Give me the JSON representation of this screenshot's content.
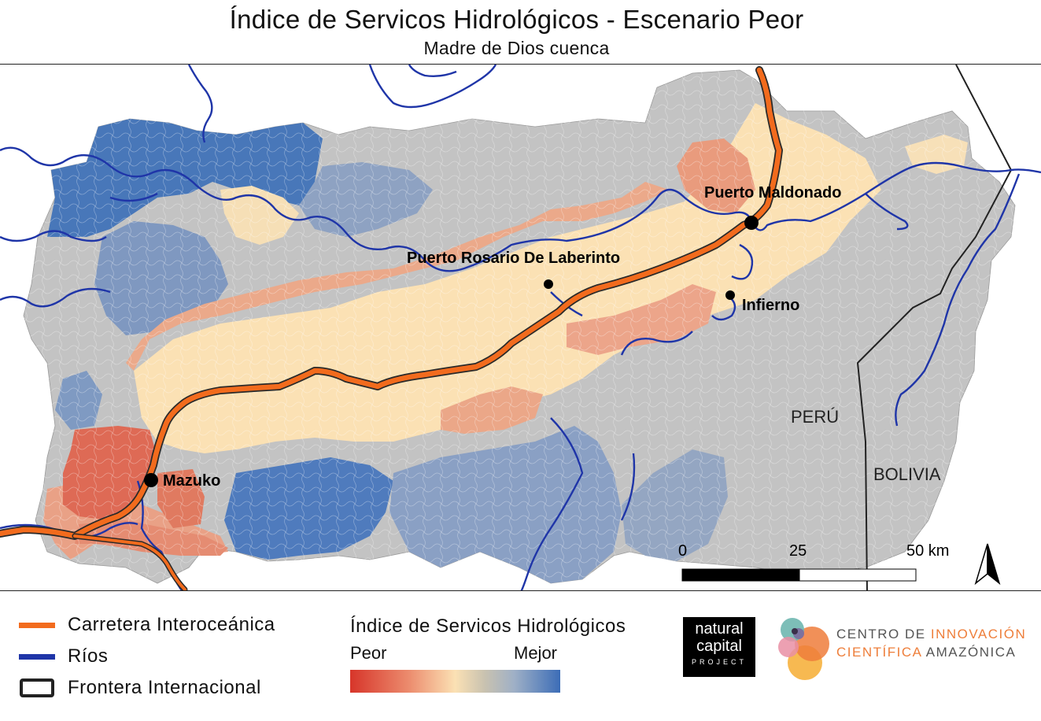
{
  "title": "Índice de Servicos Hidrológicos - Escenario Peor",
  "subtitle": "Madre de Dios cuenca",
  "places": {
    "puerto_maldonado": "Puerto Maldonado",
    "puerto_rosario": "Puerto Rosario De Laberinto",
    "infierno": "Infierno",
    "mazuko": "Mazuko"
  },
  "countries": {
    "peru": "PERÚ",
    "bolivia": "BOLIVIA"
  },
  "scale_bar": {
    "tick_0": "0",
    "tick_25": "25",
    "tick_50": "50 km"
  },
  "legend": {
    "road": "Carretera Interoceánica",
    "rivers": "Ríos",
    "border": "Frontera Internacional",
    "index_title": "Índice de Servicos Hidrológicos",
    "low_label": "Peor",
    "high_label": "Mejor"
  },
  "logos": {
    "ncp_line1": "natural",
    "ncp_line2": "capital",
    "ncp_line3": "PROJECT",
    "cia_line1_a": "CENTRO DE ",
    "cia_line1_b": "INNOVACIÓN",
    "cia_line2_a": "CIENTÍFICA ",
    "cia_line2_b": "AMAZÓNICA"
  },
  "colors": {
    "road": "#f26b1d",
    "river": "#1f35a8",
    "border": "#222222",
    "worst": "#d7352a",
    "best": "#3c6db7",
    "nodata": "#c3c3c3"
  }
}
